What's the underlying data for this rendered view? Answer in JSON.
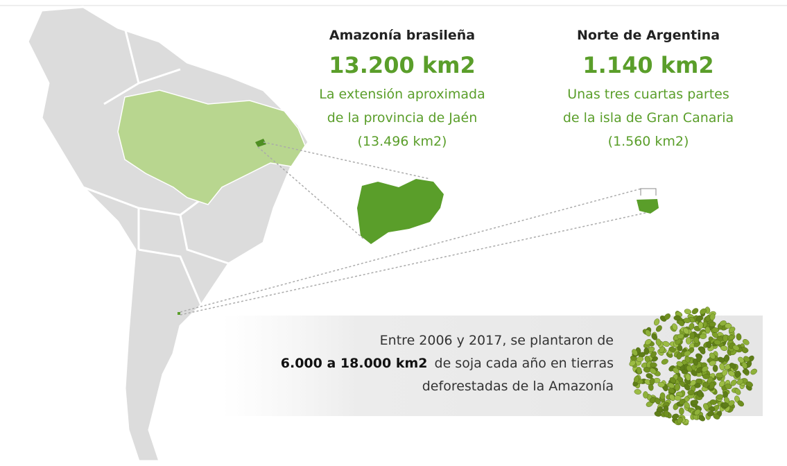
{
  "panels": [
    {
      "title": "Amazonía brasileña",
      "area": "13.200 km2",
      "comparison": [
        "La extensión aproximada",
        "de la provincia de Jaén",
        "(13.496 km2)"
      ]
    },
    {
      "title": "Norte de Argentina",
      "area": "1.140 km2",
      "comparison": [
        "Unas tres cuartas partes",
        "de la isla de Gran Canaria",
        "(1.560 km2)"
      ]
    }
  ],
  "note": {
    "lines": [
      "Entre 2006 y 2017, se plantaron de",
      "de soja cada año en tierras",
      "deforestadas de la Amazonía"
    ],
    "highlight": "6.000 a 18.000 km2"
  }
}
